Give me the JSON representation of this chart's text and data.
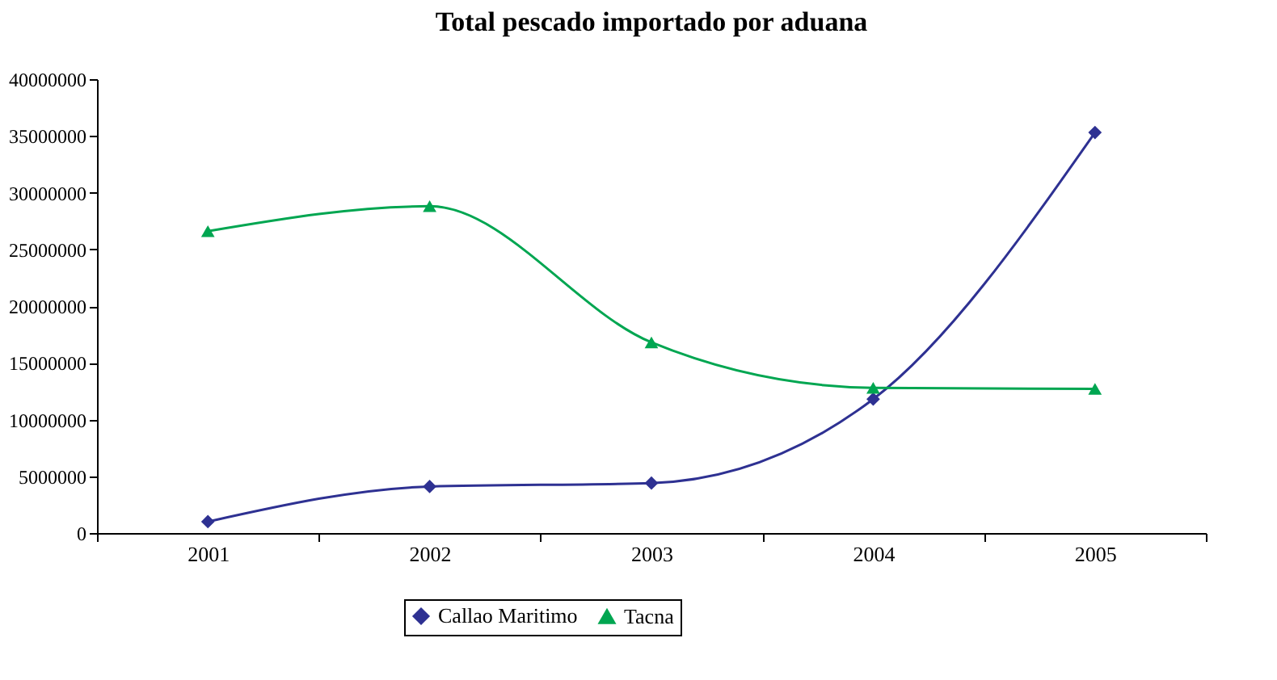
{
  "chart_data": {
    "type": "line",
    "title": "Total pescado importado por aduana",
    "categories": [
      "2001",
      "2002",
      "2003",
      "2004",
      "2005"
    ],
    "series": [
      {
        "name": "Callao Maritimo",
        "color": "#2e3192",
        "marker": "diamond",
        "values": [
          1000000,
          4100000,
          4400000,
          11800000,
          35300000
        ]
      },
      {
        "name": "Tacna",
        "color": "#00a651",
        "marker": "triangle",
        "values": [
          26600000,
          28800000,
          16800000,
          12800000,
          12700000
        ]
      }
    ],
    "ylim": [
      0,
      40000000
    ],
    "yticks": [
      0,
      5000000,
      10000000,
      15000000,
      20000000,
      25000000,
      30000000,
      35000000,
      40000000
    ],
    "grid": false,
    "legend": "bottom"
  }
}
